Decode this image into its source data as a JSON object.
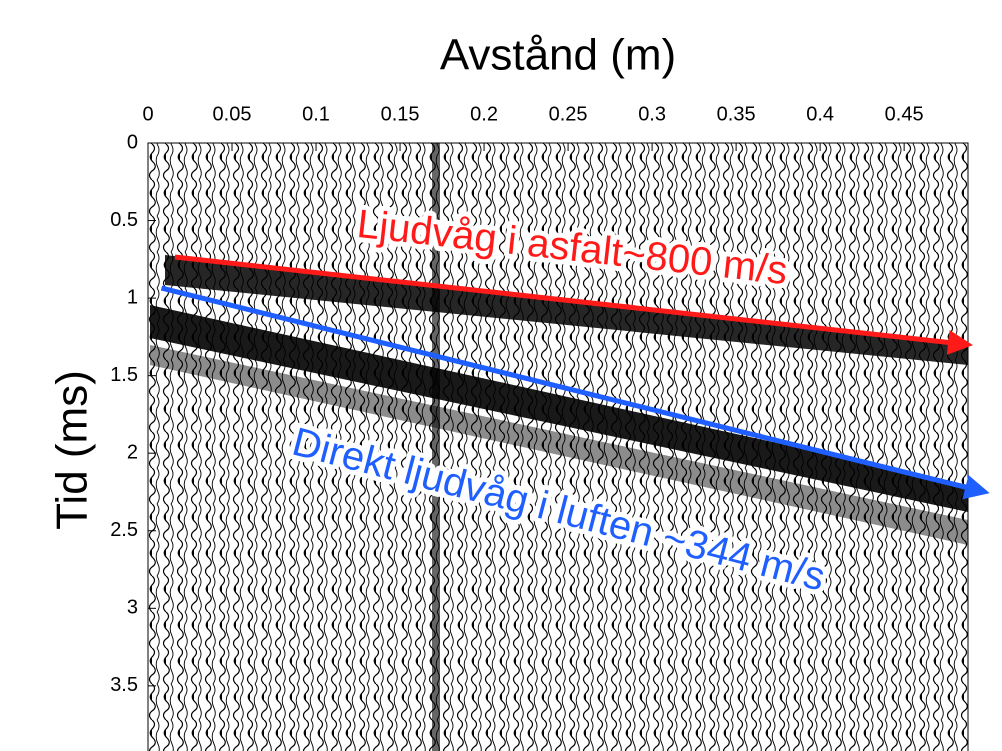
{
  "chart_data": {
    "type": "wiggle",
    "title": "Avstånd (m)",
    "y_label": "Tid (ms)",
    "xlim": [
      0,
      0.488
    ],
    "ylim": [
      0,
      3.92
    ],
    "y_reversed": true,
    "x_axis_position": "top",
    "xticks": [
      0,
      0.05,
      0.1,
      0.15,
      0.2,
      0.25,
      0.3,
      0.35,
      0.4,
      0.45
    ],
    "yticks": [
      0,
      0.5,
      1,
      1.5,
      2,
      2.5,
      3,
      3.5
    ],
    "annotations": [
      {
        "text": "Ljudvåg i asfalt~800 m/s",
        "color": "#ff1a1a",
        "x": [
          0.016,
          0.488
        ],
        "y": [
          0.735,
          1.3
        ]
      },
      {
        "text": "Direkt ljudvåg i luften ~344 m/s",
        "color": "#1f5fff",
        "x": [
          0.008,
          0.498
        ],
        "y": [
          0.935,
          2.25
        ]
      }
    ]
  }
}
